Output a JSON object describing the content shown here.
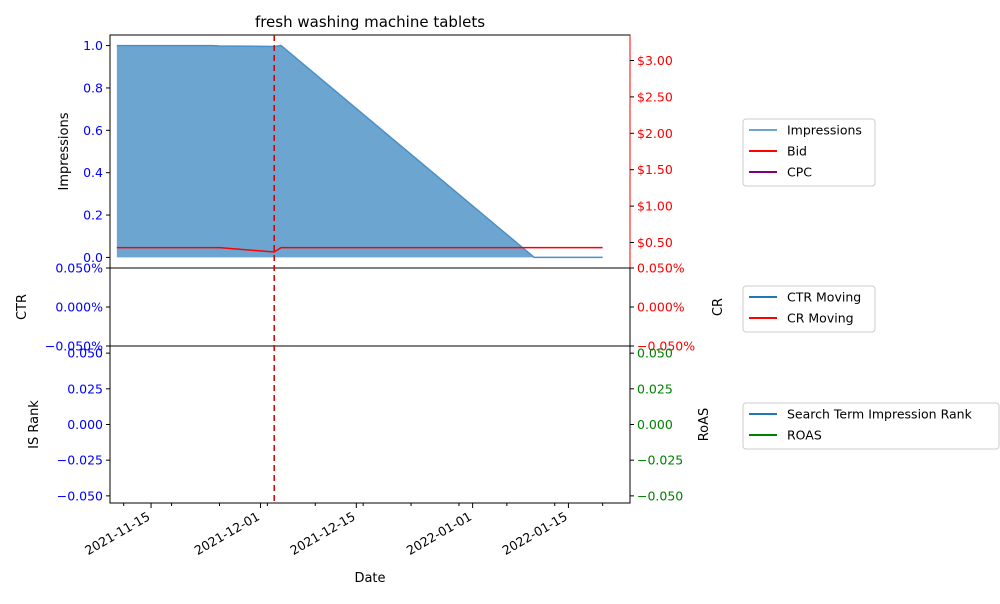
{
  "chart_data": {
    "type": "area",
    "title": "fresh washing machine tablets",
    "xlabel": "Date",
    "x_ticks": [
      "2021-11-15",
      "2021-12-01",
      "2021-12-15",
      "2022-01-01",
      "2022-01-15"
    ],
    "x_range": [
      "2021-11-09",
      "2022-01-24"
    ],
    "vline_date": "2021-12-03",
    "colors": {
      "impressions_fill": "#6ca6d0",
      "impressions_line": "#4a90c8",
      "bid": "#ff0000",
      "cpc": "#800080",
      "ctr": "#1f77b4",
      "cr": "#ff0000",
      "rank": "#1f77b4",
      "roas": "#008000",
      "left_axis": "#0000ff",
      "right_axis_red": "#ff0000",
      "right_axis_green": "#008000",
      "vline": "#cc0000"
    },
    "panels": [
      {
        "id": "top",
        "ylabel_left": "Impressions",
        "ylabel_right": "",
        "left_ticks": [
          "0.0",
          "0.2",
          "0.4",
          "0.6",
          "0.8",
          "1.0"
        ],
        "left_tick_values": [
          0,
          0.2,
          0.4,
          0.6,
          0.8,
          1.0
        ],
        "left_ylim": [
          -0.05,
          1.05
        ],
        "right_ticks": [
          "$0.50",
          "$1.00",
          "$1.50",
          "$2.00",
          "$2.50",
          "$3.00"
        ],
        "right_tick_values": [
          0.5,
          1.0,
          1.5,
          2.0,
          2.5,
          3.0
        ],
        "right_ylim": [
          0.15,
          3.35
        ],
        "series": [
          {
            "name": "Impressions",
            "axis": "left",
            "points": [
              [
                "2021-11-10",
                1.0
              ],
              [
                "2021-11-24",
                1.0
              ],
              [
                "2021-11-25",
                0.998
              ],
              [
                "2021-12-03",
                0.996
              ],
              [
                "2021-12-04",
                1.0
              ],
              [
                "2022-01-10",
                0.0
              ],
              [
                "2022-01-20",
                0.0
              ]
            ]
          },
          {
            "name": "Bid",
            "axis": "right",
            "points": [
              [
                "2021-11-10",
                0.43
              ],
              [
                "2021-11-25",
                0.43
              ],
              [
                "2021-12-03",
                0.37
              ],
              [
                "2021-12-04",
                0.43
              ],
              [
                "2022-01-20",
                0.43
              ]
            ]
          },
          {
            "name": "CPC",
            "axis": "right",
            "points": []
          }
        ],
        "legend": [
          "Impressions",
          "Bid",
          "CPC"
        ]
      },
      {
        "id": "middle",
        "ylabel_left": "CTR",
        "ylabel_right": "CR",
        "left_ticks": [
          "−0.050%",
          "0.000%",
          "0.050%"
        ],
        "left_tick_values": [
          -0.05,
          0,
          0.05
        ],
        "left_ylim": [
          -0.05,
          0.05
        ],
        "right_ticks": [
          "−0.050%",
          "0.000%",
          "0.050%"
        ],
        "right_tick_values": [
          -0.05,
          0,
          0.05
        ],
        "right_ylim": [
          -0.05,
          0.05
        ],
        "series": [
          {
            "name": "CTR Moving",
            "axis": "left",
            "points": []
          },
          {
            "name": "CR Moving",
            "axis": "right",
            "points": []
          }
        ],
        "legend": [
          "CTR Moving",
          "CR Moving"
        ]
      },
      {
        "id": "bottom",
        "ylabel_left": "IS Rank",
        "ylabel_right": "RoAS",
        "left_ticks": [
          "−0.050",
          "−0.025",
          "0.000",
          "0.025",
          "0.050"
        ],
        "left_tick_values": [
          -0.05,
          -0.025,
          0,
          0.025,
          0.05
        ],
        "left_ylim": [
          -0.055,
          0.055
        ],
        "right_ticks": [
          "−0.050",
          "−0.025",
          "0.000",
          "0.025",
          "0.050"
        ],
        "right_tick_values": [
          -0.05,
          -0.025,
          0,
          0.025,
          0.05
        ],
        "right_ylim": [
          -0.055,
          0.055
        ],
        "series": [
          {
            "name": "Search Term Impression Rank",
            "axis": "left",
            "points": []
          },
          {
            "name": "ROAS",
            "axis": "right",
            "points": []
          }
        ],
        "legend": [
          "Search Term Impression Rank",
          "ROAS"
        ]
      }
    ]
  }
}
